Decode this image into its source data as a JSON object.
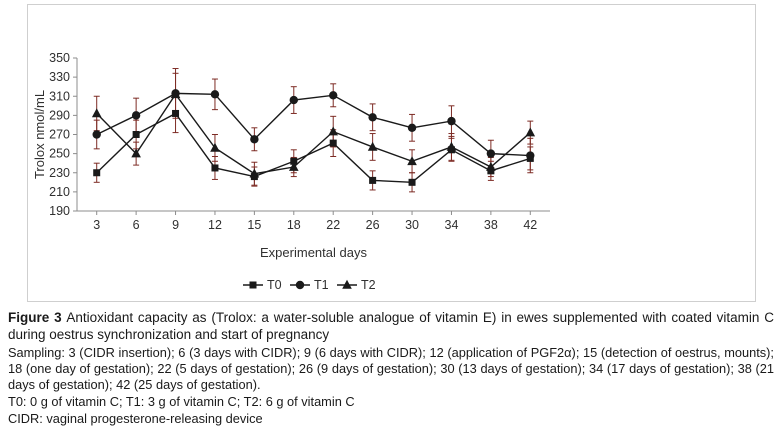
{
  "colors": {
    "series": "#1a1a1a",
    "error_bars": "#7d2b24",
    "axis": "#8c8c8c",
    "text": "#303030",
    "frame_border": "#cfcfcf"
  },
  "chart_data": {
    "type": "line",
    "title": "",
    "xlabel": "Experimental days",
    "ylabel": "Trolox nmol/mL",
    "ylim": [
      190,
      350
    ],
    "ytick_step": 20,
    "grid": false,
    "legend_position": "bottom",
    "categories": [
      3,
      6,
      9,
      12,
      15,
      18,
      22,
      26,
      30,
      34,
      38,
      42
    ],
    "series": [
      {
        "name": "T0",
        "marker": "square",
        "values": [
          230,
          270,
          292,
          235,
          226,
          242,
          261,
          222,
          220,
          254,
          232,
          245
        ],
        "errors": [
          10,
          15,
          20,
          12,
          10,
          12,
          14,
          10,
          10,
          12,
          10,
          12
        ]
      },
      {
        "name": "T1",
        "marker": "circle",
        "values": [
          270,
          290,
          313,
          312,
          265,
          306,
          311,
          288,
          277,
          284,
          250,
          248
        ],
        "errors": [
          15,
          18,
          26,
          16,
          12,
          14,
          12,
          14,
          14,
          16,
          14,
          18
        ]
      },
      {
        "name": "T2",
        "marker": "triangle",
        "values": [
          292,
          250,
          312,
          256,
          229,
          236,
          273,
          257,
          242,
          257,
          236,
          272
        ],
        "errors": [
          18,
          12,
          22,
          14,
          12,
          10,
          16,
          14,
          12,
          14,
          10,
          12
        ]
      }
    ]
  },
  "caption": {
    "figure_label": "Figure 3",
    "figure_text": "Antioxidant capacity as (Trolox: a water-soluble analogue of vitamin E) in ewes supplemented with coated vitamin C during oestrus synchronization and start of pregnancy",
    "sampling_text": "Sampling: 3 (CIDR insertion); 6 (3 days with CIDR); 9 (6 days with CIDR); 12 (application of PGF2α); 15 (detection of oestrus, mounts); 18 (one day of gestation); 22 (5 days of gestation); 26 (9 days of gestation); 30 (13 days of gestation); 34 (17 days of gestation); 38 (21 days of gestation); 42 (25 days of gestation).",
    "treatments_text": "T0: 0 g of vitamin C; T1: 3 g of vitamin C; T2: 6 g of vitamin C",
    "cidr_text": "CIDR: vaginal progesterone-releasing device"
  }
}
